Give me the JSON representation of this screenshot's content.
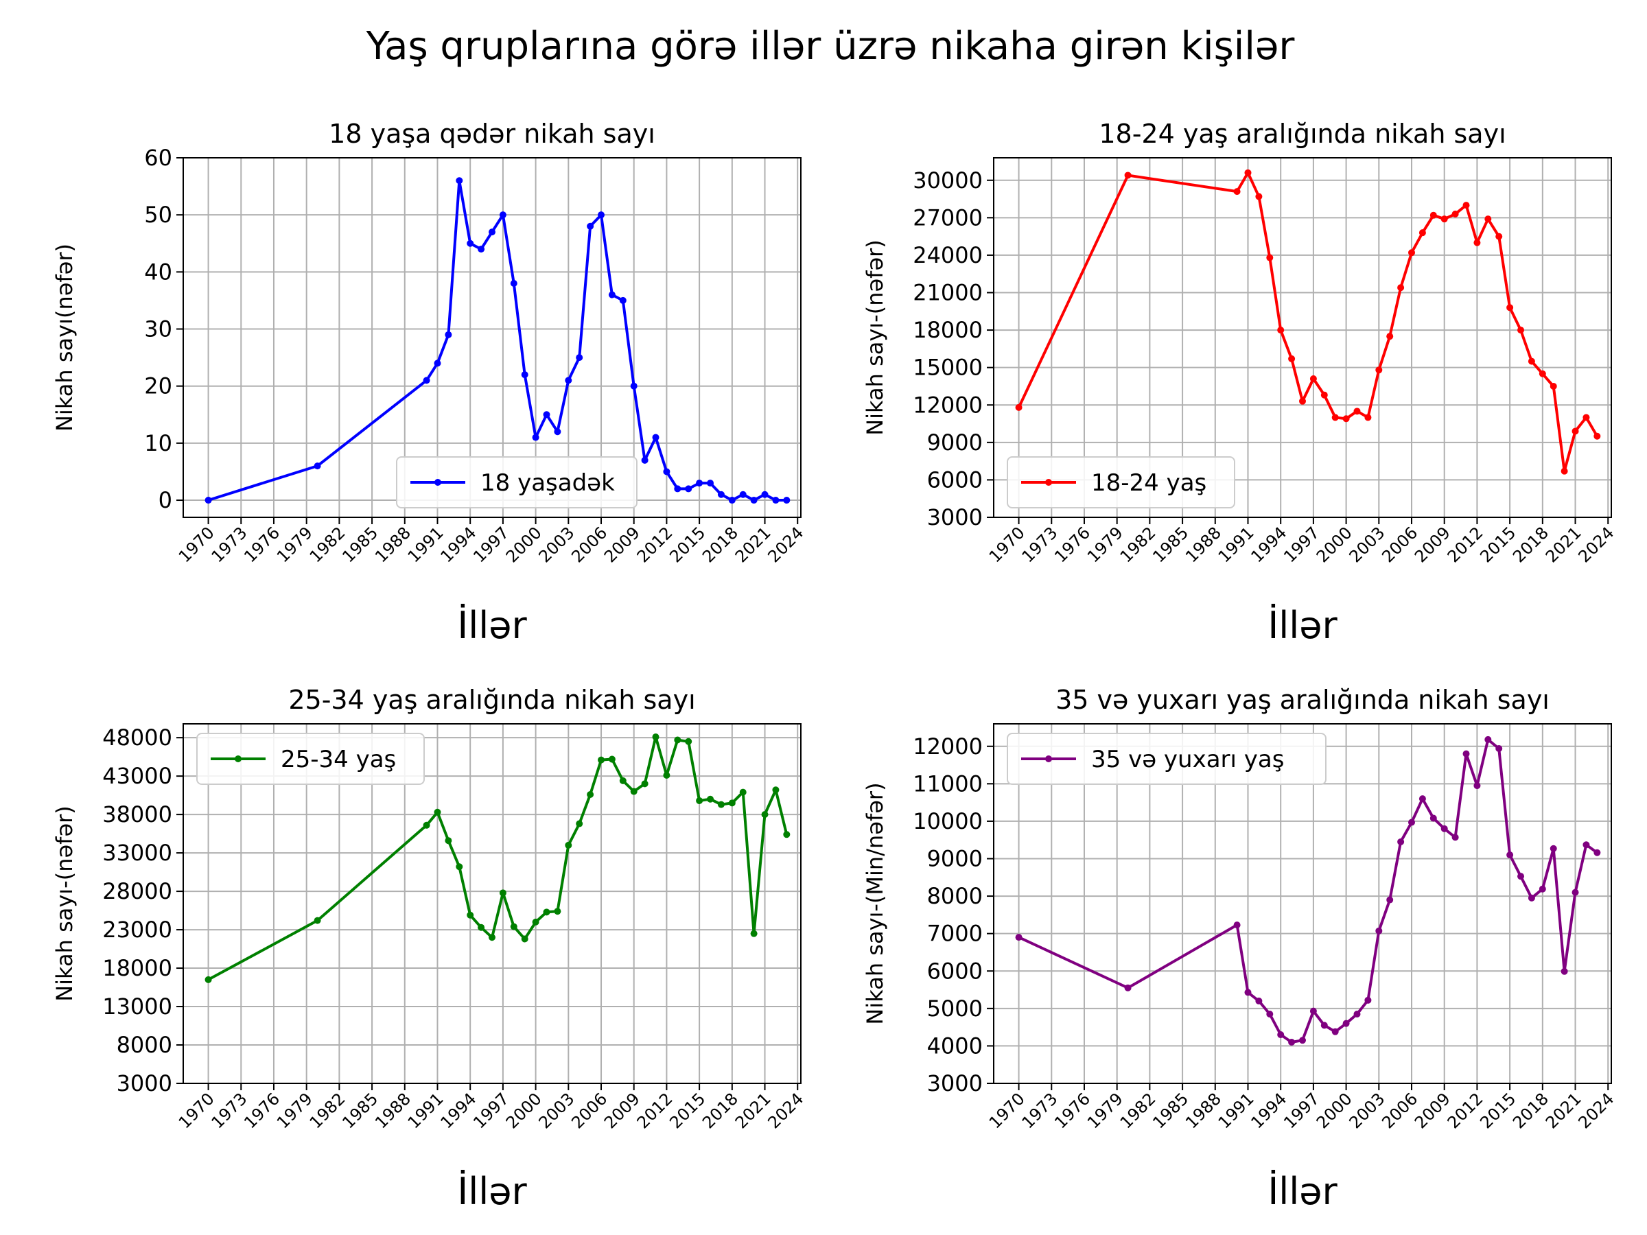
{
  "title": "Yaş qruplarına görə illər üzrə nikaha girən kişilər",
  "chart_data": [
    {
      "type": "line",
      "title": "18 yaşa qədər nikah sayı",
      "xlabel": "İllər",
      "ylabel": "Nikah sayı(nəfər)",
      "xlim": [
        1967.7,
        2024.3
      ],
      "ylim": [
        -3,
        60
      ],
      "xticks": [
        1970,
        1973,
        1976,
        1979,
        1982,
        1985,
        1988,
        1991,
        1994,
        1997,
        2000,
        2003,
        2006,
        2009,
        2012,
        2015,
        2018,
        2021,
        2024
      ],
      "yticks": [
        0,
        10,
        20,
        30,
        40,
        50,
        60
      ],
      "grid": true,
      "legend": "lower-center",
      "color": "#0000ff",
      "series": [
        {
          "name": "18 yaşadək",
          "x": [
            1970,
            1980,
            1990,
            1991,
            1992,
            1993,
            1994,
            1995,
            1996,
            1997,
            1998,
            1999,
            2000,
            2001,
            2002,
            2003,
            2004,
            2005,
            2006,
            2007,
            2008,
            2009,
            2010,
            2011,
            2012,
            2013,
            2014,
            2015,
            2016,
            2017,
            2018,
            2019,
            2020,
            2021,
            2022,
            2023
          ],
          "values": [
            0,
            6,
            21,
            24,
            29,
            56,
            45,
            44,
            47,
            50,
            38,
            22,
            11,
            15,
            12,
            21,
            25,
            48,
            50,
            36,
            35,
            20,
            7,
            11,
            5,
            2,
            2,
            3,
            3,
            1,
            0,
            1,
            0,
            1,
            0,
            0
          ]
        }
      ]
    },
    {
      "type": "line",
      "title": "18-24 yaş aralığında nikah sayı",
      "xlabel": "İllər",
      "ylabel": "Nikah sayı-(nəfər)",
      "xlim": [
        1967.7,
        2024.3
      ],
      "ylim": [
        3000,
        31800
      ],
      "xticks": [
        1970,
        1973,
        1976,
        1979,
        1982,
        1985,
        1988,
        1991,
        1994,
        1997,
        2000,
        2003,
        2006,
        2009,
        2012,
        2015,
        2018,
        2021,
        2024
      ],
      "yticks": [
        3000,
        6000,
        9000,
        12000,
        15000,
        18000,
        21000,
        24000,
        27000,
        30000
      ],
      "grid": true,
      "legend": "lower-left",
      "color": "#ff0000",
      "series": [
        {
          "name": "18-24 yaş",
          "x": [
            1970,
            1980,
            1990,
            1991,
            1992,
            1993,
            1994,
            1995,
            1996,
            1997,
            1998,
            1999,
            2000,
            2001,
            2002,
            2003,
            2004,
            2005,
            2006,
            2007,
            2008,
            2009,
            2010,
            2011,
            2012,
            2013,
            2014,
            2015,
            2016,
            2017,
            2018,
            2019,
            2020,
            2021,
            2022,
            2023
          ],
          "values": [
            11800,
            30400,
            29100,
            30600,
            28700,
            23800,
            18000,
            15700,
            12300,
            14100,
            12800,
            11000,
            10900,
            11500,
            11000,
            14800,
            17500,
            21400,
            24200,
            25800,
            27200,
            26900,
            27300,
            28000,
            25000,
            26900,
            25500,
            19800,
            18000,
            15500,
            14500,
            13500,
            6700,
            9900,
            11000,
            9500
          ]
        }
      ]
    },
    {
      "type": "line",
      "title": "25-34 yaş aralığında nikah sayı",
      "xlabel": "İllər",
      "ylabel": "Nikah sayı-(nəfər)",
      "xlim": [
        1967.7,
        2024.3
      ],
      "ylim": [
        3000,
        49800
      ],
      "xticks": [
        1970,
        1973,
        1976,
        1979,
        1982,
        1985,
        1988,
        1991,
        1994,
        1997,
        2000,
        2003,
        2006,
        2009,
        2012,
        2015,
        2018,
        2021,
        2024
      ],
      "yticks": [
        3000,
        8000,
        13000,
        18000,
        23000,
        28000,
        33000,
        38000,
        43000,
        48000
      ],
      "grid": true,
      "legend": "upper-left",
      "color": "#008000",
      "series": [
        {
          "name": "25-34 yaş",
          "x": [
            1970,
            1980,
            1990,
            1991,
            1992,
            1993,
            1994,
            1995,
            1996,
            1997,
            1998,
            1999,
            2000,
            2001,
            2002,
            2003,
            2004,
            2005,
            2006,
            2007,
            2008,
            2009,
            2010,
            2011,
            2012,
            2013,
            2014,
            2015,
            2016,
            2017,
            2018,
            2019,
            2020,
            2021,
            2022,
            2023
          ],
          "values": [
            16500,
            24200,
            36600,
            38300,
            34600,
            31200,
            24900,
            23300,
            22000,
            27800,
            23400,
            21800,
            24000,
            25300,
            25400,
            34000,
            36800,
            40600,
            45100,
            45200,
            42400,
            41000,
            42000,
            48100,
            43100,
            47700,
            47500,
            39800,
            40000,
            39300,
            39500,
            40900,
            22500,
            38000,
            41200,
            35400
          ]
        }
      ]
    },
    {
      "type": "line",
      "title": "35 və yuxarı yaş aralığında nikah sayı",
      "xlabel": "İllər",
      "ylabel": "Nikah sayı-(Min/nəfər)",
      "xlim": [
        1967.7,
        2024.3
      ],
      "ylim": [
        3000,
        12600
      ],
      "xticks": [
        1970,
        1973,
        1976,
        1979,
        1982,
        1985,
        1988,
        1991,
        1994,
        1997,
        2000,
        2003,
        2006,
        2009,
        2012,
        2015,
        2018,
        2021,
        2024
      ],
      "yticks": [
        3000,
        4000,
        5000,
        6000,
        7000,
        8000,
        9000,
        10000,
        11000,
        12000
      ],
      "grid": true,
      "legend": "upper-left",
      "color": "#800080",
      "series": [
        {
          "name": "35 və yuxarı yaş",
          "x": [
            1970,
            1980,
            1990,
            1991,
            1992,
            1993,
            1994,
            1995,
            1996,
            1997,
            1998,
            1999,
            2000,
            2001,
            2002,
            2003,
            2004,
            2005,
            2006,
            2007,
            2008,
            2009,
            2010,
            2011,
            2012,
            2013,
            2014,
            2015,
            2016,
            2017,
            2018,
            2019,
            2020,
            2021,
            2022,
            2023
          ],
          "values": [
            6900,
            5550,
            7230,
            5430,
            5200,
            4850,
            4300,
            4100,
            4150,
            4930,
            4550,
            4380,
            4600,
            4850,
            5220,
            7070,
            7900,
            9450,
            9970,
            10600,
            10080,
            9800,
            9570,
            11800,
            10950,
            12180,
            11940,
            9100,
            8530,
            7950,
            8190,
            9270,
            5990,
            8100,
            9370,
            9160
          ]
        }
      ]
    }
  ]
}
